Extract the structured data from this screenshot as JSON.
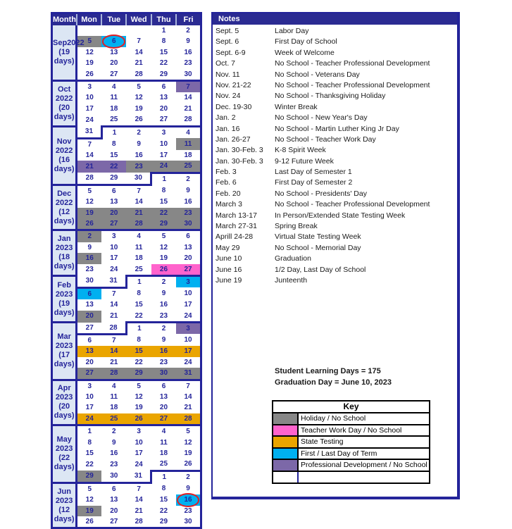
{
  "palette": {
    "navy": "#24249A",
    "header_bg": "#2B2B92",
    "month_label_bg": "#DCE6F4",
    "holiday": "#878787",
    "twd": "#FF63CC",
    "testing": "#EAA500",
    "term": "#00B0F0",
    "pd": "#7C68A8",
    "circle_red": "#E31E24"
  },
  "calendar": {
    "headers": [
      "Month",
      "Mon",
      "Tue",
      "Wed",
      "Thu",
      "Fri"
    ],
    "months": [
      {
        "label": "Sep2022",
        "days_label": "(19 days)",
        "weeks": [
          [
            {
              "d": ""
            },
            {
              "d": ""
            },
            {
              "d": ""
            },
            {
              "d": "1"
            },
            {
              "d": "2"
            }
          ],
          [
            {
              "d": "5",
              "c": "holiday"
            },
            {
              "d": "6",
              "c": "term",
              "circ": true
            },
            {
              "d": "7"
            },
            {
              "d": "8"
            },
            {
              "d": "9"
            }
          ],
          [
            {
              "d": "12"
            },
            {
              "d": "13"
            },
            {
              "d": "14"
            },
            {
              "d": "15"
            },
            {
              "d": "16"
            }
          ],
          [
            {
              "d": "19"
            },
            {
              "d": "20"
            },
            {
              "d": "21"
            },
            {
              "d": "22"
            },
            {
              "d": "23"
            }
          ],
          [
            {
              "d": "26",
              "f": "B"
            },
            {
              "d": "27",
              "f": "B"
            },
            {
              "d": "28",
              "f": "B"
            },
            {
              "d": "29",
              "f": "B"
            },
            {
              "d": "30",
              "f": "B"
            }
          ]
        ]
      },
      {
        "label": "Oct 2022",
        "days_label": "(20 days)",
        "weeks": [
          [
            {
              "d": "3"
            },
            {
              "d": "4"
            },
            {
              "d": "5"
            },
            {
              "d": "6"
            },
            {
              "d": "7",
              "c": "pd"
            }
          ],
          [
            {
              "d": "10"
            },
            {
              "d": "11"
            },
            {
              "d": "12"
            },
            {
              "d": "13"
            },
            {
              "d": "14"
            }
          ],
          [
            {
              "d": "17"
            },
            {
              "d": "18"
            },
            {
              "d": "19"
            },
            {
              "d": "20"
            },
            {
              "d": "21"
            }
          ],
          [
            {
              "d": "24"
            },
            {
              "d": "25",
              "f": "B"
            },
            {
              "d": "26",
              "f": "B"
            },
            {
              "d": "27",
              "f": "B"
            },
            {
              "d": "28",
              "f": "B"
            }
          ]
        ]
      },
      {
        "label": "Nov 2022",
        "days_label": "(16 days)",
        "weeks": [
          [
            {
              "d": "31",
              "f": "BR"
            },
            {
              "d": "1"
            },
            {
              "d": "2"
            },
            {
              "d": "3"
            },
            {
              "d": "4"
            }
          ],
          [
            {
              "d": "7"
            },
            {
              "d": "8"
            },
            {
              "d": "9"
            },
            {
              "d": "10"
            },
            {
              "d": "11",
              "c": "holiday"
            }
          ],
          [
            {
              "d": "14"
            },
            {
              "d": "15"
            },
            {
              "d": "16"
            },
            {
              "d": "17"
            },
            {
              "d": "18"
            }
          ],
          [
            {
              "d": "21",
              "c": "pd"
            },
            {
              "d": "22",
              "c": "pd"
            },
            {
              "d": "23",
              "c": "holiday"
            },
            {
              "d": "24",
              "c": "holiday",
              "f": "B"
            },
            {
              "d": "25",
              "c": "holiday",
              "f": "B"
            }
          ],
          [
            {
              "d": "28",
              "f": "B"
            },
            {
              "d": "29",
              "f": "B"
            },
            {
              "d": "30",
              "f": "B"
            },
            {
              "d": "1",
              "f": "L"
            },
            {
              "d": "2"
            }
          ]
        ]
      },
      {
        "label": "Dec 2022",
        "days_label": "(12 days)",
        "weeks": [
          [
            {
              "d": "5"
            },
            {
              "d": "6"
            },
            {
              "d": "7"
            },
            {
              "d": "8"
            },
            {
              "d": "9"
            }
          ],
          [
            {
              "d": "12"
            },
            {
              "d": "13"
            },
            {
              "d": "14"
            },
            {
              "d": "15"
            },
            {
              "d": "16"
            }
          ],
          [
            {
              "d": "19",
              "c": "holiday"
            },
            {
              "d": "20",
              "c": "holiday"
            },
            {
              "d": "21",
              "c": "holiday"
            },
            {
              "d": "22",
              "c": "holiday"
            },
            {
              "d": "23",
              "c": "holiday"
            }
          ],
          [
            {
              "d": "26",
              "c": "holiday",
              "f": "B"
            },
            {
              "d": "27",
              "c": "holiday",
              "f": "B"
            },
            {
              "d": "28",
              "c": "holiday",
              "f": "B"
            },
            {
              "d": "29",
              "c": "holiday",
              "f": "B"
            },
            {
              "d": "30",
              "c": "holiday",
              "f": "B"
            }
          ]
        ]
      },
      {
        "label": "Jan 2023",
        "days_label": "(18 days)",
        "weeks": [
          [
            {
              "d": "2",
              "c": "holiday"
            },
            {
              "d": "3"
            },
            {
              "d": "4"
            },
            {
              "d": "5"
            },
            {
              "d": "6"
            }
          ],
          [
            {
              "d": "9"
            },
            {
              "d": "10"
            },
            {
              "d": "11"
            },
            {
              "d": "12"
            },
            {
              "d": "13"
            }
          ],
          [
            {
              "d": "16",
              "c": "holiday"
            },
            {
              "d": "17"
            },
            {
              "d": "18"
            },
            {
              "d": "19"
            },
            {
              "d": "20"
            }
          ],
          [
            {
              "d": "23"
            },
            {
              "d": "24"
            },
            {
              "d": "25",
              "f": "B"
            },
            {
              "d": "26",
              "c": "twd",
              "f": "B"
            },
            {
              "d": "27",
              "c": "twd",
              "f": "B"
            }
          ]
        ]
      },
      {
        "label": "Feb 2023",
        "days_label": "(19 days)",
        "weeks": [
          [
            {
              "d": "30",
              "f": "B"
            },
            {
              "d": "31",
              "f": "BR"
            },
            {
              "d": "1"
            },
            {
              "d": "2"
            },
            {
              "d": "3",
              "c": "term"
            }
          ],
          [
            {
              "d": "6",
              "c": "term"
            },
            {
              "d": "7"
            },
            {
              "d": "8"
            },
            {
              "d": "9"
            },
            {
              "d": "10"
            }
          ],
          [
            {
              "d": "13"
            },
            {
              "d": "14"
            },
            {
              "d": "15"
            },
            {
              "d": "16"
            },
            {
              "d": "17"
            }
          ],
          [
            {
              "d": "20",
              "c": "holiday"
            },
            {
              "d": "21"
            },
            {
              "d": "22",
              "f": "B"
            },
            {
              "d": "23",
              "f": "B"
            },
            {
              "d": "24",
              "f": "B"
            }
          ]
        ]
      },
      {
        "label": "Mar 2023",
        "days_label": "(17 days)",
        "weeks": [
          [
            {
              "d": "27",
              "f": "B"
            },
            {
              "d": "28",
              "f": "BR"
            },
            {
              "d": "1"
            },
            {
              "d": "2"
            },
            {
              "d": "3",
              "c": "pd"
            }
          ],
          [
            {
              "d": "6"
            },
            {
              "d": "7"
            },
            {
              "d": "8"
            },
            {
              "d": "9"
            },
            {
              "d": "10"
            }
          ],
          [
            {
              "d": "13",
              "c": "testing"
            },
            {
              "d": "14",
              "c": "testing"
            },
            {
              "d": "15",
              "c": "testing"
            },
            {
              "d": "16",
              "c": "testing"
            },
            {
              "d": "17",
              "c": "testing"
            }
          ],
          [
            {
              "d": "20"
            },
            {
              "d": "21"
            },
            {
              "d": "22"
            },
            {
              "d": "23"
            },
            {
              "d": "24"
            }
          ],
          [
            {
              "d": "27",
              "c": "holiday",
              "f": "B"
            },
            {
              "d": "28",
              "c": "holiday",
              "f": "B"
            },
            {
              "d": "29",
              "c": "holiday",
              "f": "B"
            },
            {
              "d": "30",
              "c": "holiday",
              "f": "B"
            },
            {
              "d": "31",
              "c": "holiday",
              "f": "B"
            }
          ]
        ]
      },
      {
        "label": "Apr 2023",
        "days_label": "(20 days)",
        "weeks": [
          [
            {
              "d": "3"
            },
            {
              "d": "4"
            },
            {
              "d": "5"
            },
            {
              "d": "6"
            },
            {
              "d": "7"
            }
          ],
          [
            {
              "d": "10"
            },
            {
              "d": "11"
            },
            {
              "d": "12"
            },
            {
              "d": "13"
            },
            {
              "d": "14"
            }
          ],
          [
            {
              "d": "17"
            },
            {
              "d": "18"
            },
            {
              "d": "19"
            },
            {
              "d": "20"
            },
            {
              "d": "21"
            }
          ],
          [
            {
              "d": "24",
              "c": "testing",
              "f": "B"
            },
            {
              "d": "25",
              "c": "testing",
              "f": "B"
            },
            {
              "d": "26",
              "c": "testing",
              "f": "B"
            },
            {
              "d": "27",
              "c": "testing",
              "f": "B"
            },
            {
              "d": "28",
              "c": "testing",
              "f": "B"
            }
          ]
        ]
      },
      {
        "label": "May 2023",
        "days_label": "(22 days)",
        "weeks": [
          [
            {
              "d": "1"
            },
            {
              "d": "2"
            },
            {
              "d": "3"
            },
            {
              "d": "4"
            },
            {
              "d": "5"
            }
          ],
          [
            {
              "d": "8"
            },
            {
              "d": "9"
            },
            {
              "d": "10"
            },
            {
              "d": "11"
            },
            {
              "d": "12"
            }
          ],
          [
            {
              "d": "15"
            },
            {
              "d": "16"
            },
            {
              "d": "17"
            },
            {
              "d": "18"
            },
            {
              "d": "19"
            }
          ],
          [
            {
              "d": "22"
            },
            {
              "d": "23"
            },
            {
              "d": "24"
            },
            {
              "d": "25",
              "f": "B"
            },
            {
              "d": "26",
              "f": "B"
            }
          ],
          [
            {
              "d": "29",
              "c": "holiday",
              "f": "B"
            },
            {
              "d": "30",
              "f": "B"
            },
            {
              "d": "31",
              "f": "B"
            },
            {
              "d": "1",
              "f": "L"
            },
            {
              "d": "2"
            }
          ]
        ]
      },
      {
        "label": "Jun 2023",
        "days_label": "(12 days)",
        "weeks": [
          [
            {
              "d": "5"
            },
            {
              "d": "6"
            },
            {
              "d": "7"
            },
            {
              "d": "8"
            },
            {
              "d": "9"
            }
          ],
          [
            {
              "d": "12"
            },
            {
              "d": "13"
            },
            {
              "d": "14"
            },
            {
              "d": "15"
            },
            {
              "d": "16",
              "c": "term",
              "circ": true
            }
          ],
          [
            {
              "d": "19",
              "c": "holiday"
            },
            {
              "d": "20"
            },
            {
              "d": "21"
            },
            {
              "d": "22"
            },
            {
              "d": "23"
            }
          ],
          [
            {
              "d": "26"
            },
            {
              "d": "27"
            },
            {
              "d": "28"
            },
            {
              "d": "29"
            },
            {
              "d": "30"
            }
          ]
        ]
      }
    ]
  },
  "notes": {
    "title": "Notes",
    "items": [
      {
        "date": "Sept. 5",
        "text": "Labor Day"
      },
      {
        "date": "Sept. 6",
        "text": "First Day of School"
      },
      {
        "date": "Sept. 6-9",
        "text": "Week of Welcome"
      },
      {
        "date": "Oct. 7",
        "text": "No School - Teacher Professional Development"
      },
      {
        "date": "Nov. 11",
        "text": "No School - Veterans Day"
      },
      {
        "date": "Nov. 21-22",
        "text": "No School - Teacher Professional Development"
      },
      {
        "date": "Nov. 24",
        "text": "No School - Thanksgiving Holiday"
      },
      {
        "date": "Dec. 19-30",
        "text": "Winter Break"
      },
      {
        "date": "Jan. 2",
        "text": "No School - New Year's Day"
      },
      {
        "date": "Jan. 16",
        "text": "No School - Martin Luther King Jr Day"
      },
      {
        "date": "Jan. 26-27",
        "text": "No School - Teacher Work Day"
      },
      {
        "date": "Jan. 30-Feb. 3",
        "text": "K-8 Spirit Week"
      },
      {
        "date": "Jan. 30-Feb. 3",
        "text": "9-12 Future Week"
      },
      {
        "date": "Feb. 3",
        "text": "Last Day of Semester 1"
      },
      {
        "date": "Feb. 6",
        "text": "First Day of Semester 2"
      },
      {
        "date": "Feb. 20",
        "text": "No School - Presidents' Day"
      },
      {
        "date": "March 3",
        "text": "No School - Teacher Professional Development"
      },
      {
        "date": "March 13-17",
        "text": "In Person/Extended State Testing Week"
      },
      {
        "date": "March 27-31",
        "text": "Spring Break"
      },
      {
        "date": "Aprill 24-28",
        "text": "Virtual State Testing Week"
      },
      {
        "date": "May 29",
        "text": "No School - Memorial Day"
      },
      {
        "date": "June 10",
        "text": "Graduation"
      },
      {
        "date": "June 16",
        "text": "1/2 Day, Last Day of School"
      },
      {
        "date": "June 19",
        "text": "Junteenth"
      }
    ]
  },
  "summary": {
    "learning_days": "Student Learning Days = 175",
    "graduation_day": "Graduation Day =  June 10, 2023"
  },
  "key": {
    "title": "Key",
    "items": [
      {
        "color_key": "holiday",
        "label": "Holiday / No School"
      },
      {
        "color_key": "twd",
        "label": "Teacher Work Day / No School"
      },
      {
        "color_key": "testing",
        "label": "State Testing"
      },
      {
        "color_key": "term",
        "label": "First / Last Day of Term"
      },
      {
        "color_key": "pd",
        "label": "Professional Development / No School"
      },
      {
        "color_key": "",
        "label": ""
      }
    ]
  }
}
